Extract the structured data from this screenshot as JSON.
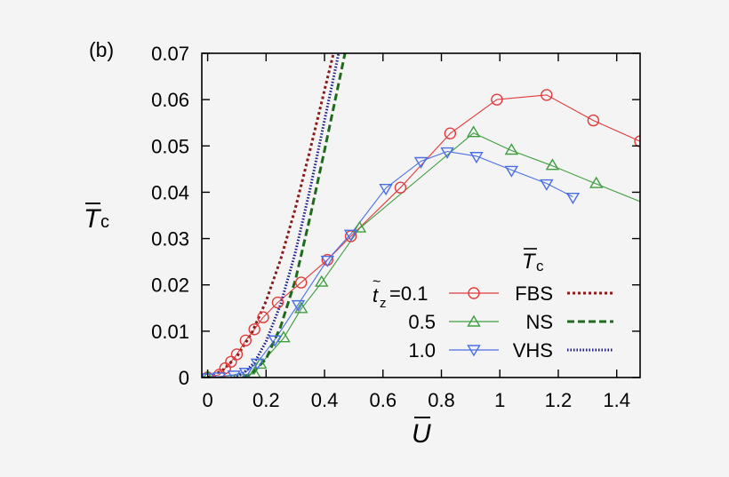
{
  "chart_data": {
    "type": "line",
    "panel_label": "(b)",
    "xlabel": "U",
    "xlabel_accent": "bar",
    "ylabel_main": "T",
    "ylabel_sub": "c",
    "ylabel_accent": "bar",
    "xlim": [
      -0.02,
      1.48
    ],
    "ylim": [
      0,
      0.07
    ],
    "x_ticks": [
      0,
      0.2,
      0.4,
      0.6,
      0.8,
      1.0,
      1.2,
      1.4
    ],
    "x_tick_labels": [
      "0",
      "0.2",
      "0.4",
      "0.6",
      "0.8",
      "1",
      "1.2",
      "1.4"
    ],
    "y_ticks": [
      0,
      0.01,
      0.02,
      0.03,
      0.04,
      0.05,
      0.06,
      0.07
    ],
    "y_tick_labels": [
      "0",
      "0.01",
      "0.02",
      "0.03",
      "0.04",
      "0.05",
      "0.06",
      "0.07"
    ],
    "grid": false,
    "legend": {
      "placement": "lower-right",
      "header": "T",
      "header_sub": "c",
      "rows": [
        {
          "param_prefix": "t",
          "param_sub": "z",
          "param_value": "=0.1",
          "label": "FBS"
        },
        {
          "param_value": "0.5",
          "label": "NS"
        },
        {
          "param_value": "1.0",
          "label": "VHS"
        }
      ]
    },
    "series": [
      {
        "label": "FBS",
        "style": "solid-markers",
        "marker": "circle",
        "color": "#e23b3b",
        "x": [
          0,
          0.04,
          0.06,
          0.08,
          0.1,
          0.13,
          0.16,
          0.19,
          0.24,
          0.32,
          0.41,
          0.49,
          0.66,
          0.83,
          0.99,
          1.16,
          1.32,
          1.48
        ],
        "y": [
          0,
          0.0006,
          0.002,
          0.0034,
          0.005,
          0.008,
          0.0104,
          0.013,
          0.0162,
          0.0205,
          0.0254,
          0.0305,
          0.041,
          0.0527,
          0.06,
          0.061,
          0.0555,
          0.051
        ]
      },
      {
        "label": "NS",
        "style": "solid-markers",
        "marker": "triangle-up",
        "color": "#3f9e3f",
        "x": [
          0,
          0.16,
          0.18,
          0.26,
          0.32,
          0.39,
          0.52,
          0.91,
          1.04,
          1.18,
          1.33,
          1.48
        ],
        "y": [
          0,
          0.0008,
          0.0028,
          0.0085,
          0.0148,
          0.0205,
          0.0322,
          0.0528,
          0.049,
          0.0457,
          0.0418,
          0.038
        ],
        "marker_skip_last": true
      },
      {
        "label": "VHS",
        "style": "solid-markers",
        "marker": "triangle-down",
        "color": "#4a6fe3",
        "x": [
          0,
          0.04,
          0.09,
          0.13,
          0.17,
          0.23,
          0.31,
          0.41,
          0.49,
          0.61,
          0.73,
          0.82,
          0.92,
          1.04,
          1.16,
          1.25
        ],
        "y": [
          0,
          0.0002,
          0.0006,
          0.0012,
          0.0032,
          0.0082,
          0.0158,
          0.0254,
          0.031,
          0.0409,
          0.0467,
          0.0488,
          0.0478,
          0.0448,
          0.0419,
          0.039
        ]
      },
      {
        "label": "FBS",
        "style": "dotted-dense",
        "color": "#8b1a1a",
        "x": [
          0,
          0.05,
          0.1,
          0.15,
          0.2,
          0.25,
          0.3,
          0.35,
          0.4,
          0.45
        ],
        "y": [
          0,
          0.0015,
          0.0045,
          0.0095,
          0.0165,
          0.0255,
          0.0365,
          0.049,
          0.062,
          0.075
        ]
      },
      {
        "label": "NS",
        "style": "dashed",
        "color": "#1e6b1e",
        "x": [
          0.12,
          0.15,
          0.2,
          0.25,
          0.3,
          0.35,
          0.4,
          0.45,
          0.48
        ],
        "y": [
          0,
          0.0008,
          0.004,
          0.011,
          0.021,
          0.0345,
          0.049,
          0.064,
          0.073
        ]
      },
      {
        "label": "VHS",
        "style": "dotted",
        "color": "#1a1a8b",
        "x": [
          0.09,
          0.12,
          0.16,
          0.2,
          0.25,
          0.3,
          0.35,
          0.4,
          0.45,
          0.47
        ],
        "y": [
          0,
          0.0008,
          0.0032,
          0.0078,
          0.0158,
          0.027,
          0.0405,
          0.0555,
          0.0705,
          0.075
        ]
      }
    ]
  }
}
